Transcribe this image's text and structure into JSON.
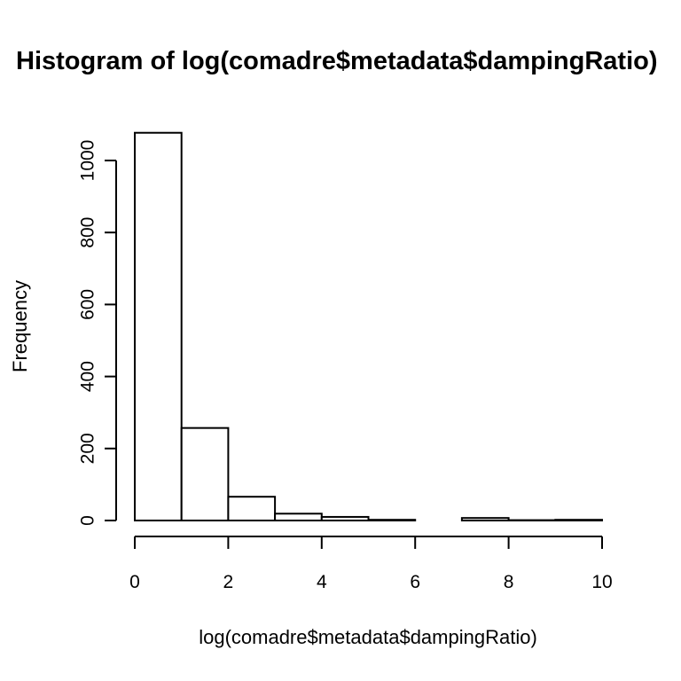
{
  "chart_data": {
    "type": "bar",
    "title": "Histogram of log(comadre$metadata$dampingRatio)",
    "xlabel": "log(comadre$metadata$dampingRatio)",
    "ylabel": "Frequency",
    "bins": [
      {
        "start": 0,
        "end": 1,
        "count": 1077
      },
      {
        "start": 1,
        "end": 2,
        "count": 257
      },
      {
        "start": 2,
        "end": 3,
        "count": 66
      },
      {
        "start": 3,
        "end": 4,
        "count": 19
      },
      {
        "start": 4,
        "end": 5,
        "count": 10
      },
      {
        "start": 5,
        "end": 6,
        "count": 2
      },
      {
        "start": 6,
        "end": 7,
        "count": 0
      },
      {
        "start": 7,
        "end": 8,
        "count": 7
      },
      {
        "start": 8,
        "end": 9,
        "count": 1
      },
      {
        "start": 9,
        "end": 10,
        "count": 2
      }
    ],
    "xlim": [
      0,
      10
    ],
    "ylim": [
      0,
      1077
    ],
    "x_ticks": [
      "0",
      "2",
      "4",
      "6",
      "8",
      "10"
    ],
    "y_ticks": [
      "0",
      "200",
      "400",
      "600",
      "800",
      "1000"
    ],
    "grid": false,
    "colors": {
      "bar_fill": "#ffffff",
      "bar_stroke": "#000000"
    }
  }
}
